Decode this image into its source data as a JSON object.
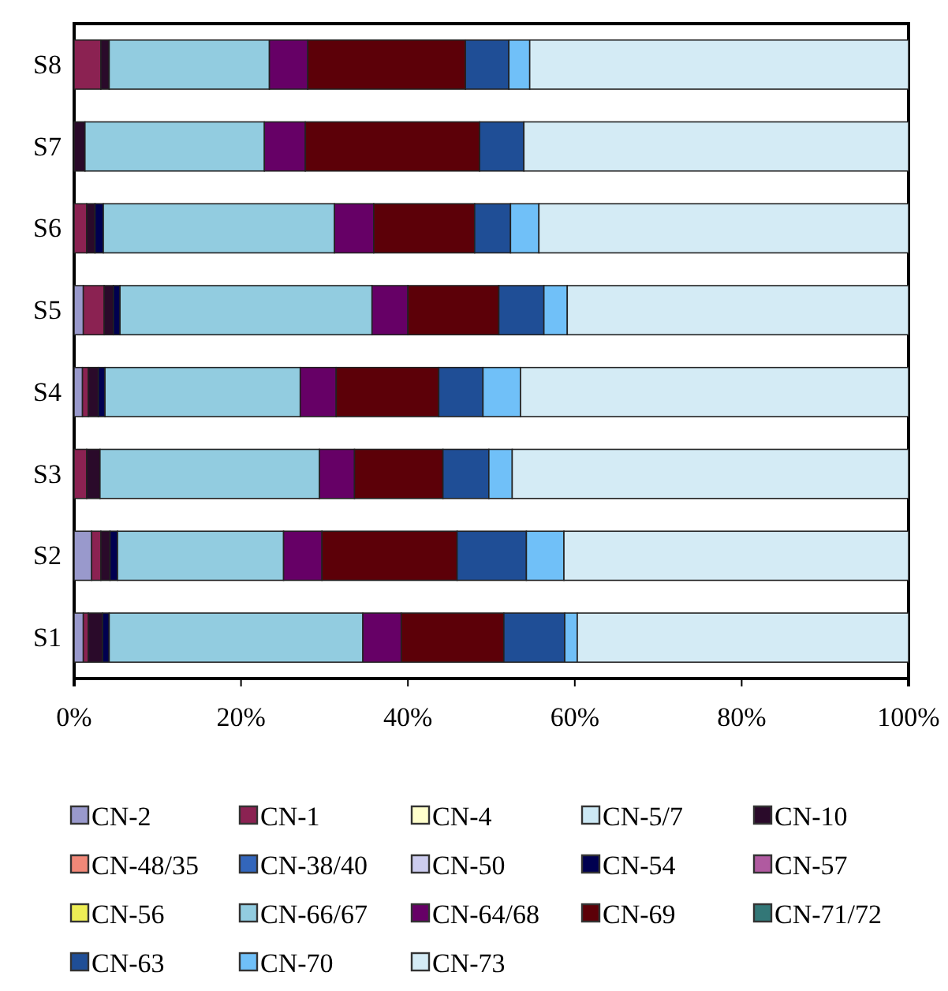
{
  "chart_data": {
    "type": "bar",
    "orientation": "horizontal",
    "stacked": true,
    "categories": [
      "S8",
      "S7",
      "S6",
      "S5",
      "S4",
      "S3",
      "S2",
      "S1"
    ],
    "xlim": [
      0,
      100
    ],
    "xticks": [
      {
        "value": 0,
        "label": "0%"
      },
      {
        "value": 20,
        "label": "20%"
      },
      {
        "value": 40,
        "label": "40%"
      },
      {
        "value": 60,
        "label": "60%"
      },
      {
        "value": 80,
        "label": "80%"
      },
      {
        "value": 100,
        "label": "100%"
      }
    ],
    "grid": false,
    "legend": "bottom",
    "series": [
      {
        "name": "CN-2",
        "color": "#9999cc",
        "values": [
          0,
          0,
          0,
          1.1,
          1.0,
          0,
          2.1,
          1.1
        ]
      },
      {
        "name": "CN-1",
        "color": "#8b2252",
        "values": [
          3.2,
          0,
          1.5,
          2.5,
          0.7,
          1.5,
          1.1,
          0.6
        ]
      },
      {
        "name": "CN-4",
        "color": "#ffffcc",
        "values": [
          0,
          0,
          0,
          0,
          0,
          0,
          0,
          0
        ]
      },
      {
        "name": "CN-5/7",
        "color": "#cce8f4",
        "values": [
          0,
          0,
          0,
          0,
          0,
          0,
          0,
          0
        ]
      },
      {
        "name": "CN-10",
        "color": "#2a0a2a",
        "values": [
          1.0,
          1.3,
          1.0,
          1.1,
          1.2,
          1.6,
          1.1,
          1.7
        ]
      },
      {
        "name": "CN-48/35",
        "color": "#f08878",
        "values": [
          0,
          0,
          0,
          0,
          0,
          0,
          0,
          0
        ]
      },
      {
        "name": "CN-38/40",
        "color": "#3366bb",
        "values": [
          0,
          0,
          0,
          0,
          0,
          0,
          0,
          0
        ]
      },
      {
        "name": "CN-50",
        "color": "#ccccee",
        "values": [
          0,
          0,
          0,
          0,
          0,
          0,
          0,
          0
        ]
      },
      {
        "name": "CN-54",
        "color": "#000050",
        "values": [
          0,
          0,
          1.0,
          0.8,
          0.8,
          0,
          0.9,
          0.8
        ]
      },
      {
        "name": "CN-57",
        "color": "#b05aa0",
        "values": [
          0,
          0,
          0,
          0,
          0,
          0,
          0,
          0
        ]
      },
      {
        "name": "CN-56",
        "color": "#eeee55",
        "values": [
          0,
          0,
          0,
          0,
          0,
          0,
          0,
          0
        ]
      },
      {
        "name": "CN-66/67",
        "color": "#92cce0",
        "values": [
          19.2,
          21.5,
          27.7,
          30.2,
          23.4,
          26.3,
          19.9,
          30.4
        ]
      },
      {
        "name": "CN-64/68",
        "color": "#660066",
        "values": [
          4.6,
          4.9,
          4.7,
          4.3,
          4.3,
          4.2,
          4.6,
          4.6
        ]
      },
      {
        "name": "CN-69",
        "color": "#5c0008",
        "values": [
          18.9,
          20.9,
          12.1,
          10.9,
          12.3,
          10.6,
          16.2,
          12.3
        ]
      },
      {
        "name": "CN-71/72",
        "color": "#337777",
        "values": [
          0,
          0,
          0,
          0,
          0,
          0,
          0,
          0
        ]
      },
      {
        "name": "CN-63",
        "color": "#1f4e96",
        "values": [
          5.2,
          5.3,
          4.3,
          5.4,
          5.3,
          5.5,
          8.3,
          7.3
        ]
      },
      {
        "name": "CN-70",
        "color": "#70c0f8",
        "values": [
          2.5,
          0,
          3.4,
          2.8,
          4.5,
          2.8,
          4.5,
          1.5
        ]
      },
      {
        "name": "CN-73",
        "color": "#d4ebf5",
        "values": [
          45.4,
          46.1,
          44.3,
          40.9,
          46.5,
          47.5,
          41.3,
          39.7
        ]
      }
    ]
  }
}
